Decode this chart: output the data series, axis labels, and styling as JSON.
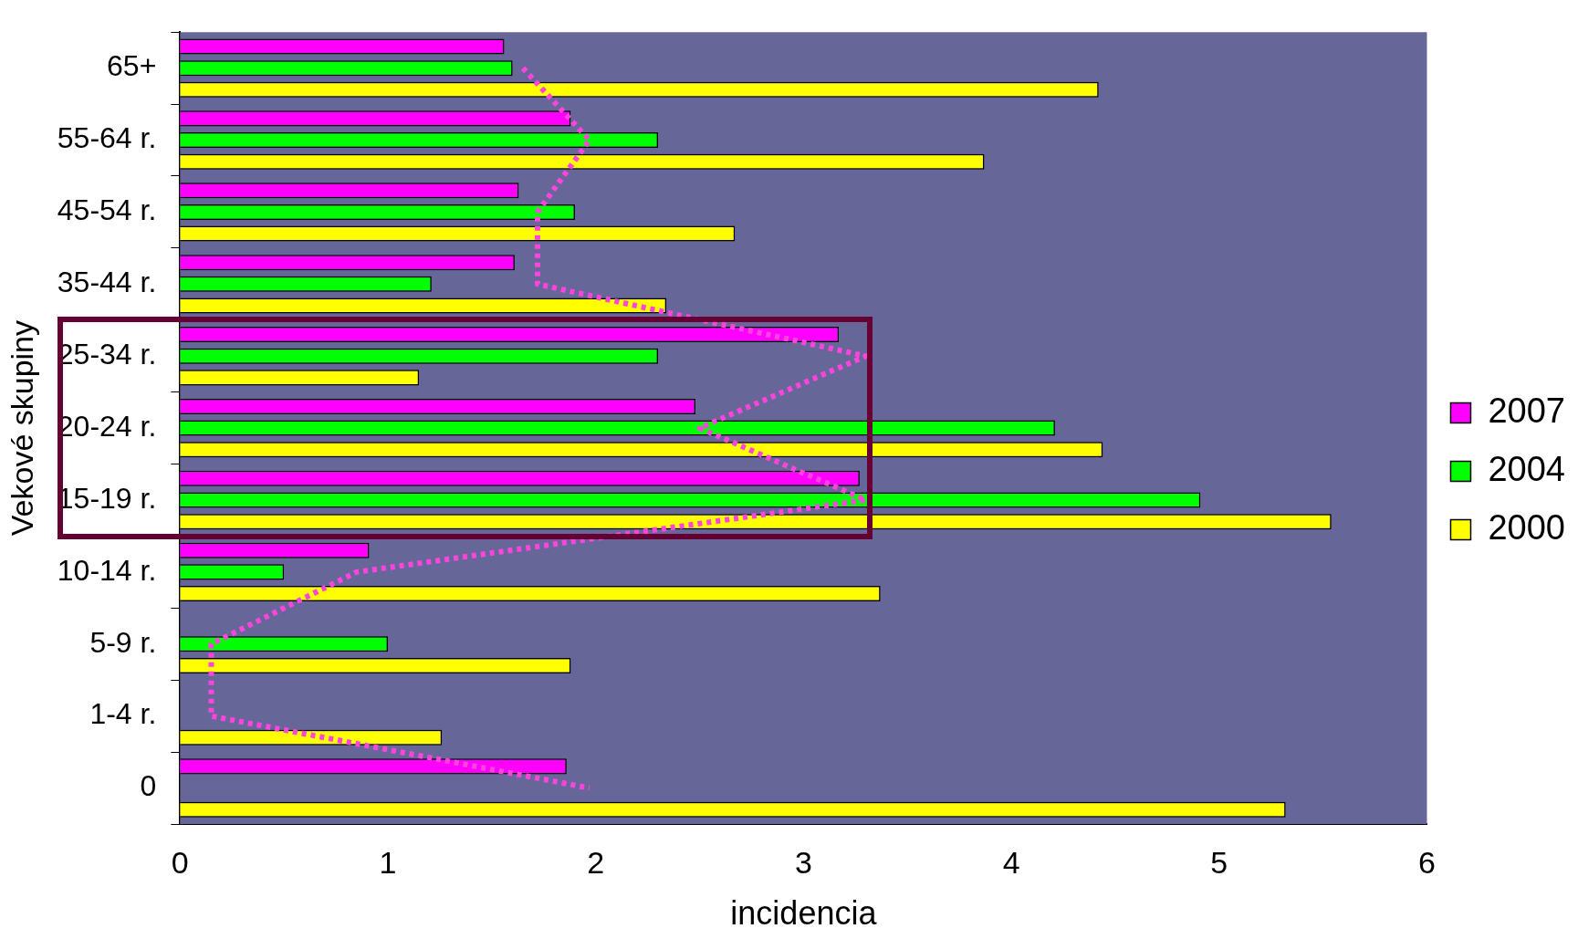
{
  "chart_data": {
    "type": "bar",
    "orientation": "horizontal",
    "xlabel": "incidencia",
    "ylabel": "Vekové skupiny",
    "categories": [
      "65+",
      "55-64 r.",
      "45-54 r.",
      "35-44 r.",
      "25-34 r.",
      "20-24 r.",
      "15-19 r.",
      "10-14 r.",
      "5-9 r.",
      "1-4 r.",
      "0"
    ],
    "series": [
      {
        "name": "2007",
        "color": "#ff00ff",
        "values": [
          1.56,
          1.88,
          1.63,
          1.61,
          3.17,
          2.48,
          3.27,
          0.91,
          null,
          null,
          1.86
        ]
      },
      {
        "name": "2004",
        "color": "#00ff00",
        "values": [
          1.6,
          2.3,
          1.9,
          1.21,
          2.3,
          4.21,
          4.91,
          0.5,
          1.0,
          null,
          null
        ]
      },
      {
        "name": "2000",
        "color": "#ffff00",
        "values": [
          4.42,
          3.87,
          2.67,
          2.34,
          1.15,
          4.44,
          5.54,
          3.37,
          1.88,
          1.26,
          5.32
        ]
      },
      {
        "type": "line",
        "color": "#ff44dd",
        "line_style": "dotted",
        "marker": "none",
        "values": [
          1.65,
          1.97,
          1.72,
          1.72,
          3.3,
          2.5,
          3.3,
          0.85,
          0.15,
          0.15,
          1.97
        ]
      }
    ],
    "xlim": [
      0,
      6
    ],
    "xticks": [
      0,
      1,
      2,
      3,
      4,
      5,
      6
    ],
    "grid": false,
    "legend": "right"
  }
}
